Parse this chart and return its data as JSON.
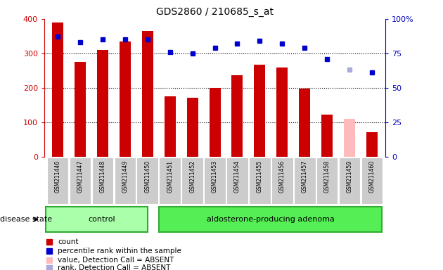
{
  "title": "GDS2860 / 210685_s_at",
  "samples": [
    "GSM211446",
    "GSM211447",
    "GSM211448",
    "GSM211449",
    "GSM211450",
    "GSM211451",
    "GSM211452",
    "GSM211453",
    "GSM211454",
    "GSM211455",
    "GSM211456",
    "GSM211457",
    "GSM211458",
    "GSM211459",
    "GSM211460"
  ],
  "counts": [
    390,
    275,
    310,
    335,
    365,
    175,
    170,
    200,
    237,
    268,
    258,
    197,
    122,
    110,
    70
  ],
  "count_colors": [
    "#cc0000",
    "#cc0000",
    "#cc0000",
    "#cc0000",
    "#cc0000",
    "#cc0000",
    "#cc0000",
    "#cc0000",
    "#cc0000",
    "#cc0000",
    "#cc0000",
    "#cc0000",
    "#cc0000",
    "#ffbbbb",
    "#cc0000"
  ],
  "percentile_ranks": [
    87,
    83,
    85,
    85,
    85,
    76,
    75,
    79,
    82,
    84,
    82,
    79,
    71,
    63,
    61
  ],
  "rank_colors": [
    "#0000cc",
    "#0000cc",
    "#0000cc",
    "#0000cc",
    "#0000cc",
    "#0000cc",
    "#0000cc",
    "#0000cc",
    "#0000cc",
    "#0000cc",
    "#0000cc",
    "#0000cc",
    "#0000cc",
    "#aaaadd",
    "#0000cc"
  ],
  "control_samples": 5,
  "group1_label": "control",
  "group2_label": "aldosterone-producing adenoma",
  "disease_state_label": "disease state",
  "ylim_left": [
    0,
    400
  ],
  "ylim_right": [
    0,
    100
  ],
  "yticks_left": [
    0,
    100,
    200,
    300,
    400
  ],
  "yticks_right": [
    0,
    25,
    50,
    75,
    100
  ],
  "yticklabels_right": [
    "0",
    "25",
    "50",
    "75",
    "100%"
  ],
  "bar_width": 0.5,
  "background_color": "#ffffff",
  "legend_items": [
    {
      "label": "count",
      "color": "#cc0000"
    },
    {
      "label": "percentile rank within the sample",
      "color": "#0000cc"
    },
    {
      "label": "value, Detection Call = ABSENT",
      "color": "#ffbbbb"
    },
    {
      "label": "rank, Detection Call = ABSENT",
      "color": "#aaaadd"
    }
  ]
}
